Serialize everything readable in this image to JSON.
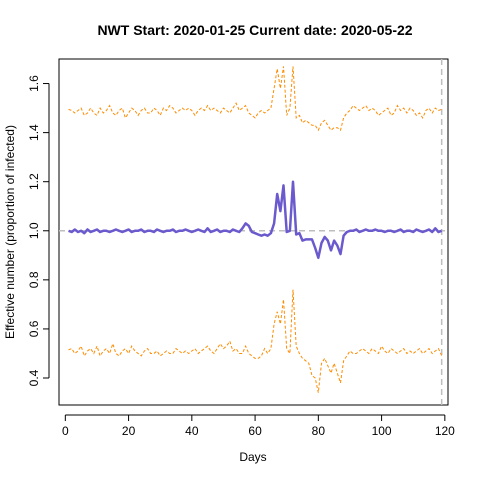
{
  "chart_data": {
    "type": "line",
    "title": "NWT Start:  2020-01-25   Current date:  2020-05-22",
    "xlabel": "Days",
    "ylabel": "Effective number (proportion of infected)",
    "xlim": [
      -2,
      121
    ],
    "ylim": [
      0.29,
      1.7
    ],
    "x_ticks": [
      0,
      20,
      40,
      60,
      80,
      100,
      120
    ],
    "y_ticks": [
      0.4,
      0.6,
      0.8,
      1.0,
      1.2,
      1.4,
      1.6
    ],
    "x_tick_labels": [
      "0",
      "20",
      "40",
      "60",
      "80",
      "100",
      "120"
    ],
    "y_tick_labels": [
      "0.4",
      "0.6",
      "0.8",
      "1.0",
      "1.2",
      "1.4",
      "1.6"
    ],
    "grid": false,
    "colors": {
      "estimate": "#6a5acd",
      "bounds": "#ff8c00",
      "reference": "#bebebe"
    },
    "reference_lines": [
      {
        "orientation": "horizontal",
        "value": 1.0
      },
      {
        "orientation": "vertical",
        "value": 119
      }
    ],
    "x": [
      1,
      2,
      3,
      4,
      5,
      6,
      7,
      8,
      9,
      10,
      11,
      12,
      13,
      14,
      15,
      16,
      17,
      18,
      19,
      20,
      21,
      22,
      23,
      24,
      25,
      26,
      27,
      28,
      29,
      30,
      31,
      32,
      33,
      34,
      35,
      36,
      37,
      38,
      39,
      40,
      41,
      42,
      43,
      44,
      45,
      46,
      47,
      48,
      49,
      50,
      51,
      52,
      53,
      54,
      55,
      56,
      57,
      58,
      59,
      60,
      61,
      62,
      63,
      64,
      65,
      66,
      67,
      68,
      69,
      70,
      71,
      72,
      73,
      74,
      75,
      76,
      77,
      78,
      79,
      80,
      81,
      82,
      83,
      84,
      85,
      86,
      87,
      88,
      89,
      90,
      91,
      92,
      93,
      94,
      95,
      96,
      97,
      98,
      99,
      100,
      101,
      102,
      103,
      104,
      105,
      106,
      107,
      108,
      109,
      110,
      111,
      112,
      113,
      114,
      115,
      116,
      117,
      118,
      119
    ],
    "series": [
      {
        "role": "estimate",
        "style": "solid",
        "values": [
          1.0,
          0.995,
          1.005,
          0.995,
          1.0,
          0.99,
          1.005,
          0.995,
          1.0,
          1.005,
          0.995,
          1.0,
          1.0,
          0.995,
          1.0,
          1.005,
          1.0,
          0.995,
          1.0,
          1.005,
          0.995,
          1.0,
          1.0,
          1.005,
          0.995,
          1.0,
          1.0,
          0.995,
          1.005,
          1.0,
          0.995,
          1.0,
          1.0,
          1.005,
          0.995,
          1.0,
          1.0,
          1.005,
          1.0,
          0.995,
          1.0,
          1.005,
          1.0,
          0.995,
          1.01,
          0.995,
          1.0,
          1.005,
          0.995,
          1.0,
          1.0,
          0.995,
          1.005,
          1.0,
          0.995,
          1.01,
          1.03,
          1.02,
          0.995,
          0.99,
          0.985,
          0.98,
          0.985,
          0.98,
          0.99,
          1.03,
          1.15,
          1.08,
          1.185,
          0.995,
          1.0,
          1.2,
          0.985,
          0.99,
          0.96,
          0.965,
          0.965,
          0.965,
          0.93,
          0.89,
          0.95,
          0.975,
          0.96,
          0.92,
          0.96,
          0.94,
          0.905,
          0.98,
          0.995,
          1.0,
          1.0,
          1.005,
          0.995,
          1.0,
          1.005,
          1.0,
          1.0,
          1.005,
          1.0,
          1.0,
          0.995,
          1.0,
          1.0,
          0.995,
          1.0,
          1.005,
          0.995,
          1.0,
          1.0,
          0.995,
          1.005,
          1.0,
          0.995,
          1.0,
          1.005,
          0.995,
          1.01,
          0.995,
          1.0
        ]
      },
      {
        "role": "upper",
        "style": "dashed",
        "values": [
          1.495,
          1.49,
          1.48,
          1.49,
          1.5,
          1.47,
          1.48,
          1.5,
          1.48,
          1.47,
          1.5,
          1.48,
          1.49,
          1.51,
          1.48,
          1.47,
          1.49,
          1.5,
          1.46,
          1.48,
          1.5,
          1.49,
          1.47,
          1.49,
          1.5,
          1.48,
          1.48,
          1.5,
          1.49,
          1.47,
          1.5,
          1.49,
          1.51,
          1.5,
          1.48,
          1.49,
          1.5,
          1.49,
          1.5,
          1.49,
          1.47,
          1.49,
          1.5,
          1.49,
          1.51,
          1.49,
          1.5,
          1.49,
          1.48,
          1.5,
          1.49,
          1.48,
          1.5,
          1.52,
          1.49,
          1.5,
          1.51,
          1.48,
          1.47,
          1.46,
          1.48,
          1.49,
          1.48,
          1.49,
          1.5,
          1.58,
          1.66,
          1.58,
          1.67,
          1.47,
          1.5,
          1.67,
          1.46,
          1.47,
          1.44,
          1.45,
          1.44,
          1.43,
          1.43,
          1.41,
          1.44,
          1.45,
          1.43,
          1.41,
          1.42,
          1.42,
          1.41,
          1.46,
          1.48,
          1.49,
          1.51,
          1.5,
          1.49,
          1.5,
          1.51,
          1.49,
          1.5,
          1.49,
          1.47,
          1.48,
          1.49,
          1.5,
          1.47,
          1.48,
          1.51,
          1.49,
          1.5,
          1.48,
          1.5,
          1.49,
          1.47,
          1.48,
          1.46,
          1.49,
          1.5,
          1.48,
          1.5,
          1.49,
          1.495
        ]
      },
      {
        "role": "lower",
        "style": "dashed",
        "values": [
          0.515,
          0.52,
          0.5,
          0.51,
          0.53,
          0.49,
          0.51,
          0.52,
          0.5,
          0.53,
          0.49,
          0.51,
          0.52,
          0.5,
          0.54,
          0.5,
          0.49,
          0.51,
          0.52,
          0.5,
          0.53,
          0.51,
          0.5,
          0.49,
          0.51,
          0.52,
          0.5,
          0.5,
          0.51,
          0.49,
          0.5,
          0.51,
          0.5,
          0.5,
          0.52,
          0.51,
          0.5,
          0.51,
          0.5,
          0.51,
          0.52,
          0.5,
          0.51,
          0.52,
          0.53,
          0.51,
          0.5,
          0.52,
          0.54,
          0.52,
          0.53,
          0.55,
          0.51,
          0.52,
          0.5,
          0.5,
          0.53,
          0.5,
          0.49,
          0.48,
          0.48,
          0.49,
          0.52,
          0.5,
          0.52,
          0.62,
          0.67,
          0.62,
          0.72,
          0.52,
          0.5,
          0.76,
          0.53,
          0.5,
          0.48,
          0.47,
          0.46,
          0.41,
          0.4,
          0.34,
          0.46,
          0.48,
          0.45,
          0.42,
          0.46,
          0.42,
          0.38,
          0.47,
          0.49,
          0.51,
          0.5,
          0.5,
          0.51,
          0.52,
          0.51,
          0.5,
          0.52,
          0.51,
          0.5,
          0.53,
          0.51,
          0.5,
          0.52,
          0.51,
          0.5,
          0.51,
          0.52,
          0.5,
          0.51,
          0.5,
          0.51,
          0.52,
          0.5,
          0.51,
          0.52,
          0.5,
          0.51,
          0.52,
          0.49
        ]
      }
    ]
  }
}
